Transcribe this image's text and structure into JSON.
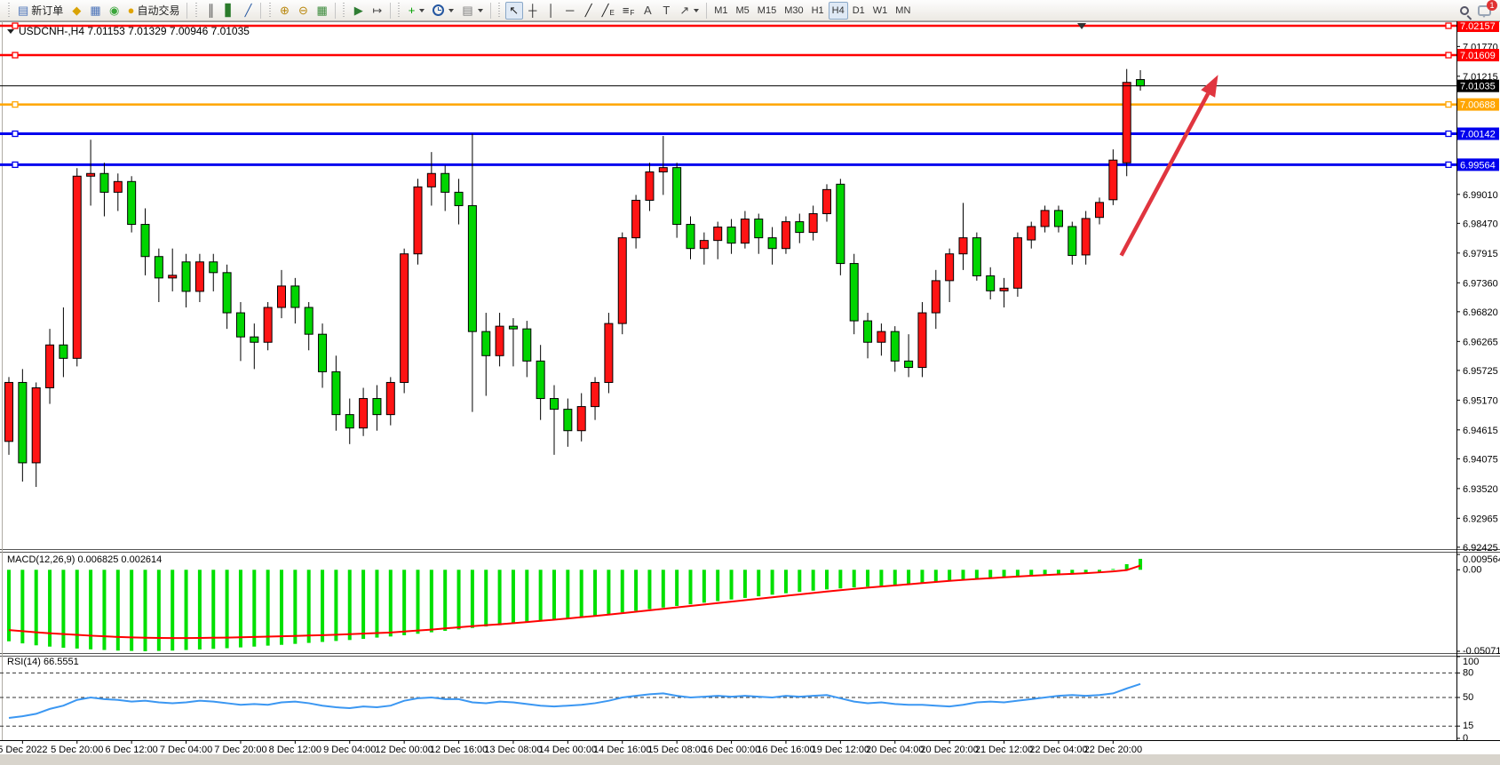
{
  "window": {
    "app": "MetaTrader 4 terminal",
    "bg": "#d8d4cc"
  },
  "toolbar": {
    "groups": [
      [
        {
          "name": "new-order-button",
          "glyph": "▤",
          "color": "#4a72b8",
          "label": "新订单"
        },
        {
          "name": "gold-icon-button",
          "glyph": "◆",
          "color": "#d9a305"
        },
        {
          "name": "market-watch-button",
          "glyph": "▦",
          "color": "#4a72b8"
        },
        {
          "name": "signals-button",
          "glyph": "◉",
          "color": "#3aa63a"
        },
        {
          "name": "autotrade-button",
          "glyph": "●",
          "color": "#e0a400",
          "label": "自动交易",
          "dot": "#d02020"
        }
      ],
      [
        {
          "name": "bar-chart-button",
          "glyph": "║",
          "color": "#333"
        },
        {
          "name": "candle-chart-button",
          "glyph": "▋",
          "color": "#2a7a2a"
        },
        {
          "name": "line-chart-button",
          "glyph": "╱",
          "color": "#2456a0"
        }
      ],
      [
        {
          "name": "zoom-in-button",
          "glyph": "⊕",
          "color": "#b8860b"
        },
        {
          "name": "zoom-out-button",
          "glyph": "⊖",
          "color": "#b8860b"
        },
        {
          "name": "tile-windows-button",
          "glyph": "▦",
          "color": "#3a8a3a"
        }
      ],
      [
        {
          "name": "auto-scroll-button",
          "glyph": "▶",
          "color": "#2e7d32"
        },
        {
          "name": "chart-shift-button",
          "glyph": "↦",
          "color": "#444"
        }
      ],
      [
        {
          "name": "indicators-button",
          "glyph": "+",
          "color": "#00a000",
          "caret": true
        },
        {
          "name": "periods-button",
          "icon": "clock",
          "caret": true
        },
        {
          "name": "templates-button",
          "glyph": "▤",
          "color": "#7c7c7c",
          "caret": true
        }
      ],
      [
        {
          "name": "cursor-tool-button",
          "glyph": "↖",
          "color": "#222",
          "active": true
        },
        {
          "name": "crosshair-tool-button",
          "glyph": "┼",
          "color": "#222"
        },
        {
          "name": "vertical-line-tool-button",
          "glyph": "│",
          "color": "#222"
        },
        {
          "name": "horizontal-line-tool-button",
          "glyph": "─",
          "color": "#222"
        },
        {
          "name": "trendline-tool-button",
          "glyph": "╱",
          "color": "#222"
        },
        {
          "name": "channel-tool-button",
          "glyph": "╱",
          "color": "#222",
          "sub": "E"
        },
        {
          "name": "fibonacci-tool-button",
          "glyph": "≡",
          "color": "#222",
          "sub": "F"
        },
        {
          "name": "text-tool-button",
          "glyph": "A",
          "color": "#444"
        },
        {
          "name": "text-label-tool-button",
          "glyph": "T",
          "color": "#444"
        },
        {
          "name": "arrows-tool-button",
          "glyph": "↗",
          "color": "#444",
          "caret": true
        }
      ]
    ],
    "timeframes": [
      "M1",
      "M5",
      "M15",
      "M30",
      "H1",
      "H4",
      "D1",
      "W1",
      "MN"
    ],
    "active_timeframe": "H4",
    "search_tooltip": "search",
    "chat_badge": "1"
  },
  "chart_data": {
    "type": "candlestick",
    "symbol": "USDCNH-",
    "timeframe": "H4",
    "title": "USDCNH-,H4  7.01153 7.01329 7.00946 7.01035",
    "ohlc_current": {
      "open": 7.01153,
      "high": 7.01329,
      "low": 7.00946,
      "close": 7.01035
    },
    "convention_note": "red = bullish, green = bearish",
    "up_color": "#fe1414",
    "down_color": "#00d500",
    "wick_color": "#000000",
    "grid": false,
    "price_axis": {
      "top": 7.0224,
      "bottom": 6.9239,
      "ticks": [
        "7.01770",
        "7.01215",
        "6.99010",
        "6.98470",
        "6.97915",
        "6.97360",
        "6.96820",
        "6.96265",
        "6.95725",
        "6.95170",
        "6.94615",
        "6.94075",
        "6.93520",
        "6.92965",
        "6.92425"
      ]
    },
    "hlines": [
      {
        "label": "7.02157",
        "price": 7.02157,
        "color": "#ff0000",
        "width": 2.5
      },
      {
        "label": "7.01609",
        "price": 7.01609,
        "color": "#ff0000",
        "width": 2.5
      },
      {
        "label": "7.00688",
        "price": 7.00688,
        "color": "#ffa500",
        "width": 2.5
      },
      {
        "label": "7.00142",
        "price": 7.00142,
        "color": "#0000ee",
        "width": 3
      },
      {
        "label": "6.99564",
        "price": 6.99564,
        "color": "#0000ee",
        "width": 3
      }
    ],
    "current_price": {
      "label": "7.01035",
      "price": 7.01035,
      "color": "#000000"
    },
    "x_labels": [
      "5 Dec 2022",
      "5 Dec 20:00",
      "6 Dec 12:00",
      "7 Dec 04:00",
      "7 Dec 20:00",
      "8 Dec 12:00",
      "9 Dec 04:00",
      "12 Dec 00:00",
      "12 Dec 16:00",
      "13 Dec 08:00",
      "14 Dec 00:00",
      "14 Dec 16:00",
      "15 Dec 08:00",
      "16 Dec 00:00",
      "16 Dec 16:00",
      "19 Dec 12:00",
      "20 Dec 04:00",
      "20 Dec 20:00",
      "21 Dec 12:00",
      "22 Dec 04:00",
      "22 Dec 20:00"
    ],
    "x_label_first_bar": 1,
    "x_label_every_bars": 4,
    "candles": [
      [
        6.944,
        6.956,
        6.9415,
        6.955
      ],
      [
        6.955,
        6.9575,
        6.9365,
        6.94
      ],
      [
        6.94,
        6.955,
        6.9355,
        6.954
      ],
      [
        6.954,
        6.965,
        6.951,
        6.962
      ],
      [
        6.962,
        6.969,
        6.956,
        6.9595
      ],
      [
        6.9595,
        6.995,
        6.958,
        6.9935
      ],
      [
        6.9935,
        7.0003,
        6.988,
        6.994
      ],
      [
        6.994,
        6.996,
        6.986,
        6.9905
      ],
      [
        6.9905,
        6.994,
        6.987,
        6.9925
      ],
      [
        6.9925,
        6.9935,
        6.983,
        6.9845
      ],
      [
        6.9845,
        6.9875,
        6.975,
        6.9785
      ],
      [
        6.9785,
        6.98,
        6.97,
        6.9745
      ],
      [
        6.9745,
        6.98,
        6.972,
        6.975
      ],
      [
        6.9775,
        6.979,
        6.969,
        6.972
      ],
      [
        6.972,
        6.979,
        6.97,
        6.9775
      ],
      [
        6.9775,
        6.979,
        6.972,
        6.9755
      ],
      [
        6.9755,
        6.977,
        6.965,
        6.968
      ],
      [
        6.968,
        6.97,
        6.959,
        6.9635
      ],
      [
        6.9635,
        6.966,
        6.9575,
        6.9625
      ],
      [
        6.9625,
        6.97,
        6.961,
        6.969
      ],
      [
        6.969,
        6.976,
        6.967,
        6.973
      ],
      [
        6.973,
        6.9745,
        6.966,
        6.969
      ],
      [
        6.969,
        6.97,
        6.961,
        6.964
      ],
      [
        6.964,
        6.966,
        6.954,
        6.957
      ],
      [
        6.957,
        6.96,
        6.946,
        6.949
      ],
      [
        6.949,
        6.952,
        6.9435,
        6.9465
      ],
      [
        6.9465,
        6.954,
        6.945,
        6.952
      ],
      [
        6.952,
        6.9545,
        6.946,
        6.949
      ],
      [
        6.949,
        6.956,
        6.947,
        6.955
      ],
      [
        6.955,
        6.98,
        6.953,
        6.979
      ],
      [
        6.979,
        6.993,
        6.977,
        6.9915
      ],
      [
        6.9915,
        6.998,
        6.988,
        6.994
      ],
      [
        6.994,
        6.9955,
        6.987,
        6.9905
      ],
      [
        6.9905,
        6.993,
        6.9845,
        6.988
      ],
      [
        6.988,
        7.0014,
        6.9495,
        6.9645
      ],
      [
        6.9645,
        6.968,
        6.9525,
        6.96
      ],
      [
        6.96,
        6.968,
        6.958,
        6.9655
      ],
      [
        6.9655,
        6.967,
        6.958,
        6.965
      ],
      [
        6.965,
        6.9665,
        6.956,
        6.959
      ],
      [
        6.959,
        6.962,
        6.948,
        6.952
      ],
      [
        6.952,
        6.9545,
        6.9415,
        6.95
      ],
      [
        6.95,
        6.952,
        6.943,
        6.946
      ],
      [
        6.946,
        6.953,
        6.944,
        6.9505
      ],
      [
        6.9505,
        6.956,
        6.948,
        6.955
      ],
      [
        6.955,
        6.968,
        6.953,
        6.966
      ],
      [
        6.966,
        6.983,
        6.964,
        6.982
      ],
      [
        6.982,
        6.99,
        6.98,
        6.989
      ],
      [
        6.989,
        6.996,
        6.987,
        6.9943
      ],
      [
        6.9943,
        7.001,
        6.99,
        6.9951
      ],
      [
        6.9951,
        6.996,
        6.982,
        6.9845
      ],
      [
        6.9845,
        6.986,
        6.978,
        6.98
      ],
      [
        6.98,
        6.983,
        6.977,
        6.9815
      ],
      [
        6.9815,
        6.985,
        6.978,
        6.984
      ],
      [
        6.984,
        6.9855,
        6.979,
        6.981
      ],
      [
        6.981,
        6.987,
        6.98,
        6.9855
      ],
      [
        6.9855,
        6.9865,
        6.979,
        6.982
      ],
      [
        6.982,
        6.984,
        6.977,
        6.98
      ],
      [
        6.98,
        6.986,
        6.979,
        6.985
      ],
      [
        6.985,
        6.9865,
        6.981,
        6.983
      ],
      [
        6.983,
        6.988,
        6.9815,
        6.9865
      ],
      [
        6.9865,
        6.992,
        6.985,
        6.991
      ],
      [
        6.992,
        6.993,
        6.975,
        6.9772
      ],
      [
        6.9772,
        6.979,
        6.964,
        6.9665
      ],
      [
        6.9665,
        6.968,
        6.9595,
        6.9625
      ],
      [
        6.9625,
        6.966,
        6.96,
        6.9645
      ],
      [
        6.9645,
        6.9655,
        6.957,
        6.959
      ],
      [
        6.959,
        6.964,
        6.956,
        6.9578
      ],
      [
        6.9578,
        6.97,
        6.956,
        6.968
      ],
      [
        6.968,
        6.976,
        6.965,
        6.974
      ],
      [
        6.974,
        6.98,
        6.97,
        6.979
      ],
      [
        6.979,
        6.9885,
        6.976,
        6.982
      ],
      [
        6.982,
        6.983,
        6.974,
        6.9749
      ],
      [
        6.9749,
        6.9765,
        6.9705,
        6.9721
      ],
      [
        6.9721,
        6.9745,
        6.969,
        6.9726
      ],
      [
        6.9726,
        6.983,
        6.971,
        6.982
      ],
      [
        6.9816,
        6.985,
        6.98,
        6.9841
      ],
      [
        6.9841,
        6.988,
        6.983,
        6.9871
      ],
      [
        6.9871,
        6.988,
        6.983,
        6.9841
      ],
      [
        6.9841,
        6.985,
        6.977,
        6.9787
      ],
      [
        6.9788,
        6.987,
        6.977,
        6.9856
      ],
      [
        6.9858,
        6.9895,
        6.9845,
        6.9886
      ],
      [
        6.9891,
        6.9985,
        6.9881,
        6.9965
      ],
      [
        6.996,
        7.0135,
        6.9935,
        7.011
      ],
      [
        7.01153,
        7.01329,
        7.00946,
        7.01035
      ]
    ],
    "macd": {
      "label": "MACD(12,26,9) 0.006825 0.002614",
      "params": "12,26,9",
      "value": 0.006825,
      "signal_value": 0.002614,
      "scale_max": 0.009564,
      "scale_min": -0.050711,
      "scale_labels": [
        "0.009564",
        "0.00",
        "-0.050711"
      ],
      "histogram_color": "#00e000",
      "signal_color": "#ff0000",
      "histogram": [
        -0.0445,
        -0.0458,
        -0.047,
        -0.0478,
        -0.0485,
        -0.049,
        -0.0495,
        -0.0499,
        -0.0503,
        -0.0505,
        -0.0507,
        -0.0505,
        -0.0503,
        -0.0499,
        -0.0496,
        -0.0492,
        -0.0488,
        -0.0483,
        -0.0478,
        -0.0472,
        -0.0467,
        -0.0461,
        -0.0455,
        -0.0449,
        -0.0443,
        -0.0437,
        -0.043,
        -0.0422,
        -0.0415,
        -0.0407,
        -0.0398,
        -0.0389,
        -0.038,
        -0.0371,
        -0.0362,
        -0.0353,
        -0.0345,
        -0.0336,
        -0.0328,
        -0.032,
        -0.0312,
        -0.0303,
        -0.0295,
        -0.0285,
        -0.0275,
        -0.0265,
        -0.0255,
        -0.0245,
        -0.0235,
        -0.0225,
        -0.0215,
        -0.0205,
        -0.0195,
        -0.0185,
        -0.0175,
        -0.0165,
        -0.0155,
        -0.0146,
        -0.0138,
        -0.013,
        -0.0122,
        -0.0116,
        -0.011,
        -0.0105,
        -0.01,
        -0.0095,
        -0.009,
        -0.0084,
        -0.0078,
        -0.0072,
        -0.0065,
        -0.006,
        -0.0055,
        -0.005,
        -0.0046,
        -0.0041,
        -0.0036,
        -0.0031,
        -0.0026,
        -0.002,
        -0.0012,
        0.0005,
        0.0035,
        0.006825
      ],
      "signal": [
        -0.0375,
        -0.0382,
        -0.0389,
        -0.0395,
        -0.04,
        -0.0405,
        -0.041,
        -0.0414,
        -0.0418,
        -0.0421,
        -0.0423,
        -0.0424,
        -0.0425,
        -0.0425,
        -0.0424,
        -0.0423,
        -0.0422,
        -0.042,
        -0.0418,
        -0.0416,
        -0.0414,
        -0.0412,
        -0.0409,
        -0.0407,
        -0.0404,
        -0.0401,
        -0.0397,
        -0.0394,
        -0.039,
        -0.0384,
        -0.0378,
        -0.0372,
        -0.0365,
        -0.0358,
        -0.0351,
        -0.0345,
        -0.0339,
        -0.0332,
        -0.0325,
        -0.0318,
        -0.0311,
        -0.0303,
        -0.0295,
        -0.0287,
        -0.0279,
        -0.027,
        -0.0261,
        -0.0252,
        -0.0243,
        -0.0234,
        -0.0225,
        -0.0216,
        -0.0207,
        -0.0198,
        -0.0189,
        -0.018,
        -0.0171,
        -0.0162,
        -0.0153,
        -0.0144,
        -0.0135,
        -0.0127,
        -0.0119,
        -0.0111,
        -0.0104,
        -0.0097,
        -0.009,
        -0.0083,
        -0.0076,
        -0.0069,
        -0.0063,
        -0.0057,
        -0.0052,
        -0.0047,
        -0.0042,
        -0.0037,
        -0.0033,
        -0.0029,
        -0.0025,
        -0.0021,
        -0.0016,
        -0.001,
        -0.0002,
        0.002614
      ]
    },
    "rsi": {
      "label": "RSI(14) 66.5551",
      "period": 14,
      "value": 66.5551,
      "line_color": "#3b97f2",
      "levels": [
        80,
        50,
        15
      ],
      "scale_labels": [
        {
          "text": "100",
          "value": 100
        },
        {
          "text": "80",
          "value": 80
        },
        {
          "text": "50",
          "value": 50
        },
        {
          "text": "15",
          "value": 15
        },
        {
          "text": "0",
          "value": 0
        }
      ],
      "range": [
        0,
        100
      ],
      "values": [
        25,
        27,
        30,
        36,
        40,
        47,
        50,
        48,
        47,
        45,
        46,
        44,
        43,
        44,
        46,
        45,
        43,
        41,
        42,
        41,
        44,
        45,
        43,
        40,
        38,
        37,
        39,
        38,
        40,
        46,
        49,
        50,
        48,
        48,
        44,
        43,
        45,
        44,
        42,
        40,
        39,
        40,
        41,
        43,
        46,
        50,
        52,
        54,
        55,
        52,
        50,
        51,
        52,
        51,
        52,
        51,
        50,
        52,
        51,
        52,
        53,
        49,
        45,
        43,
        44,
        42,
        41,
        41,
        40,
        39,
        41,
        44,
        45,
        44,
        46,
        48,
        50,
        52,
        53,
        52,
        53,
        55,
        61,
        66.5551
      ]
    },
    "trend_arrow": {
      "from": {
        "bar": 81.6,
        "price": 6.9787
      },
      "to": {
        "bar": 88.7,
        "price": 7.0124
      },
      "color": "#e0353f",
      "width": 4.5
    },
    "bar_marker_x_bar": 78.7
  }
}
